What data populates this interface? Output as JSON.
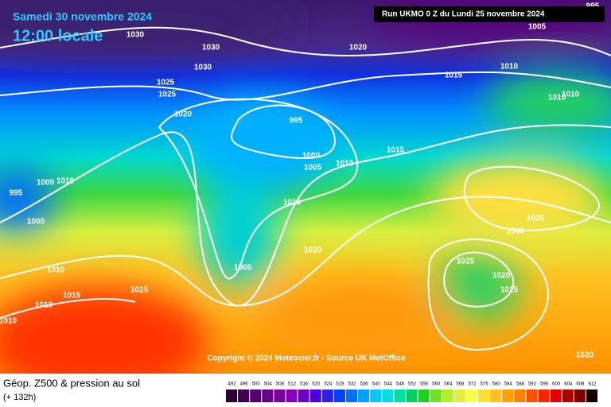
{
  "header": {
    "title": "Samedi 30 novembre 2024",
    "subtitle": "12:00 locale",
    "run": "Run UKMO 0 Z du Lundi 25 novembre 2024"
  },
  "isobar_labels": [
    995,
    1030,
    1030,
    1030,
    1020,
    1005,
    1010,
    1015,
    1025,
    1025,
    1010,
    1010,
    1020,
    995,
    1015,
    1000,
    1005,
    1010,
    995,
    1000,
    1010,
    1000,
    1010,
    1035,
    1030,
    1020,
    1025,
    1005,
    1020,
    1010,
    1015,
    1025,
    1015,
    1010,
    1010,
    1020
  ],
  "copyright": "Copyright © 2024 Meteociel.fr - Source UK MetOffice",
  "footer": {
    "title": "Géop. Z500 & pression au sol",
    "lead": "(+ 132h)"
  },
  "legend": {
    "labels": [
      492,
      496,
      500,
      504,
      508,
      512,
      516,
      520,
      524,
      528,
      532,
      536,
      540,
      544,
      548,
      552,
      556,
      560,
      564,
      568,
      572,
      576,
      580,
      584,
      588,
      592,
      596,
      600,
      604,
      608,
      612
    ],
    "colors": [
      "#2a0033",
      "#3d0050",
      "#55006e",
      "#6a008a",
      "#7a00a0",
      "#8800b8",
      "#6a00c8",
      "#4a00d8",
      "#2a20e8",
      "#0040ff",
      "#0070ff",
      "#00a0ff",
      "#00c8ff",
      "#00e0e0",
      "#00e0a0",
      "#00d060",
      "#20d020",
      "#70e020",
      "#b0f020",
      "#e0f040",
      "#ffff40",
      "#ffe030",
      "#ffc020",
      "#ffa000",
      "#ff8000",
      "#ff5000",
      "#ff2000",
      "#e00000",
      "#b00000",
      "#800000",
      "#100000"
    ]
  }
}
